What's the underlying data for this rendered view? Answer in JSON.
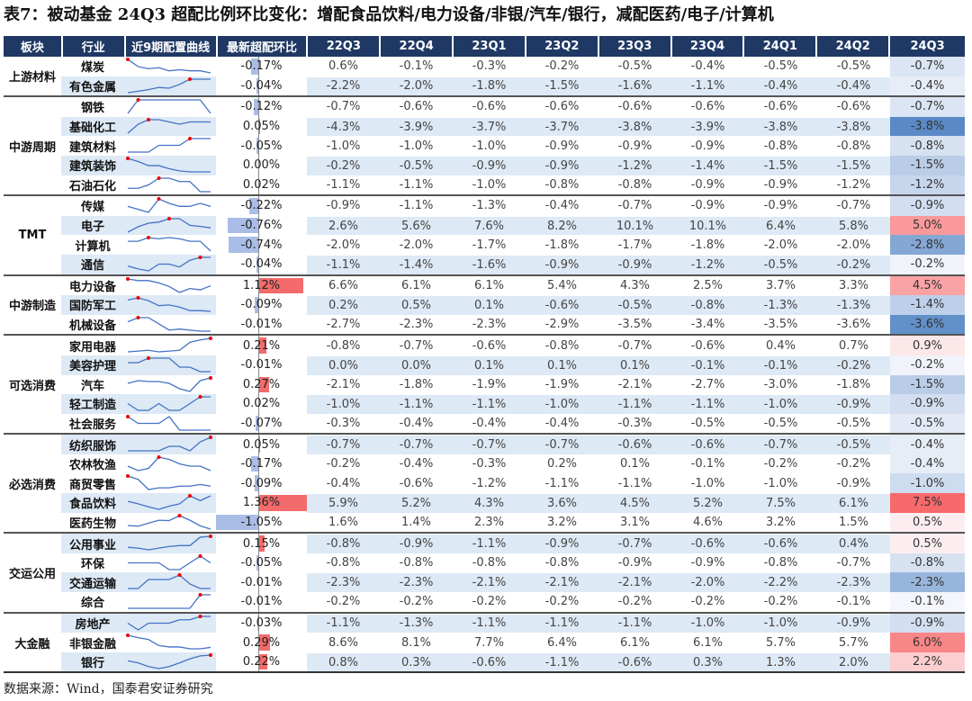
{
  "title": "表7：被动基金 24Q3 超配比例环比变化：增配食品饮料/电力设备/非银/汽车/银行，减配医药/电子/计算机",
  "source": "数据来源：Wind，国泰君安证券研究",
  "headers": [
    "板块",
    "行业",
    "近9期配置曲线",
    "最新超配环比",
    "22Q3",
    "22Q4",
    "23Q1",
    "23Q2",
    "23Q3",
    "23Q4",
    "24Q1",
    "24Q2",
    "24Q3"
  ],
  "colors": {
    "header": "#1f3864",
    "positive": "#f8696b",
    "negative": "#5a8ac6",
    "shade": "#dde9f5"
  },
  "groups": [
    {
      "name": "上游材料",
      "rows": [
        {
          "industry": "煤炭",
          "latest": "-0.17%",
          "latest_value": -0.17,
          "values": [
            "0.6%",
            "-0.1%",
            "-0.3%",
            "-0.2%",
            "-0.5%",
            "-0.4%",
            "-0.5%",
            "-0.5%",
            "-0.7%"
          ]
        },
        {
          "industry": "有色金属",
          "latest": "-0.04%",
          "latest_value": -0.04,
          "values": [
            "-2.2%",
            "-2.0%",
            "-1.8%",
            "-1.5%",
            "-1.6%",
            "-1.1%",
            "-0.4%",
            "-0.4%",
            "-0.4%"
          ]
        }
      ]
    },
    {
      "name": "中游周期",
      "rows": [
        {
          "industry": "钢铁",
          "latest": "-0.12%",
          "latest_value": -0.12,
          "values": [
            "-0.7%",
            "-0.6%",
            "-0.6%",
            "-0.6%",
            "-0.6%",
            "-0.6%",
            "-0.6%",
            "-0.6%",
            "-0.7%"
          ]
        },
        {
          "industry": "基础化工",
          "latest": "0.05%",
          "latest_value": 0.05,
          "values": [
            "-4.3%",
            "-3.9%",
            "-3.7%",
            "-3.7%",
            "-3.8%",
            "-3.9%",
            "-3.8%",
            "-3.8%",
            "-3.8%"
          ]
        },
        {
          "industry": "建筑材料",
          "latest": "-0.05%",
          "latest_value": -0.05,
          "values": [
            "-1.0%",
            "-1.0%",
            "-1.0%",
            "-0.9%",
            "-0.9%",
            "-0.9%",
            "-0.8%",
            "-0.8%",
            "-0.8%"
          ]
        },
        {
          "industry": "建筑装饰",
          "latest": "0.00%",
          "latest_value": 0,
          "values": [
            "-0.2%",
            "-0.5%",
            "-0.9%",
            "-0.9%",
            "-1.2%",
            "-1.4%",
            "-1.5%",
            "-1.5%",
            "-1.5%"
          ]
        },
        {
          "industry": "石油石化",
          "latest": "0.02%",
          "latest_value": 0.02,
          "values": [
            "-1.1%",
            "-1.1%",
            "-1.0%",
            "-0.8%",
            "-0.8%",
            "-0.9%",
            "-0.9%",
            "-1.2%",
            "-1.2%"
          ]
        }
      ]
    },
    {
      "name": "TMT",
      "rows": [
        {
          "industry": "传媒",
          "latest": "-0.22%",
          "latest_value": -0.22,
          "values": [
            "-0.9%",
            "-1.1%",
            "-1.3%",
            "-0.4%",
            "-0.7%",
            "-0.9%",
            "-0.9%",
            "-0.7%",
            "-0.9%"
          ]
        },
        {
          "industry": "电子",
          "latest": "-0.76%",
          "latest_value": -0.76,
          "values": [
            "2.6%",
            "5.6%",
            "7.6%",
            "8.2%",
            "10.1%",
            "10.1%",
            "6.4%",
            "5.8%",
            "5.0%"
          ]
        },
        {
          "industry": "计算机",
          "latest": "-0.74%",
          "latest_value": -0.74,
          "values": [
            "-2.0%",
            "-2.0%",
            "-1.7%",
            "-1.8%",
            "-1.7%",
            "-1.8%",
            "-2.0%",
            "-2.0%",
            "-2.8%"
          ]
        },
        {
          "industry": "通信",
          "latest": "-0.04%",
          "latest_value": -0.04,
          "values": [
            "-1.1%",
            "-1.4%",
            "-1.6%",
            "-0.9%",
            "-0.9%",
            "-1.2%",
            "-0.5%",
            "-0.2%",
            "-0.2%"
          ]
        }
      ]
    },
    {
      "name": "中游制造",
      "rows": [
        {
          "industry": "电力设备",
          "latest": "1.12%",
          "latest_value": 1.12,
          "values": [
            "6.6%",
            "6.1%",
            "6.1%",
            "5.4%",
            "4.3%",
            "2.5%",
            "3.7%",
            "3.3%",
            "4.5%"
          ]
        },
        {
          "industry": "国防军工",
          "latest": "-0.09%",
          "latest_value": -0.09,
          "values": [
            "0.2%",
            "0.5%",
            "0.1%",
            "-0.6%",
            "-0.5%",
            "-0.8%",
            "-1.3%",
            "-1.3%",
            "-1.4%"
          ]
        },
        {
          "industry": "机械设备",
          "latest": "-0.01%",
          "latest_value": -0.01,
          "values": [
            "-2.7%",
            "-2.3%",
            "-2.3%",
            "-2.9%",
            "-3.5%",
            "-3.4%",
            "-3.5%",
            "-3.6%",
            "-3.6%"
          ]
        }
      ]
    },
    {
      "name": "可选消费",
      "rows": [
        {
          "industry": "家用电器",
          "latest": "0.21%",
          "latest_value": 0.21,
          "values": [
            "-0.8%",
            "-0.7%",
            "-0.6%",
            "-0.8%",
            "-0.7%",
            "-0.6%",
            "0.4%",
            "0.7%",
            "0.9%"
          ]
        },
        {
          "industry": "美容护理",
          "latest": "-0.01%",
          "latest_value": -0.01,
          "values": [
            "0.0%",
            "0.0%",
            "0.1%",
            "0.1%",
            "0.1%",
            "-0.1%",
            "-0.1%",
            "-0.2%",
            "-0.2%"
          ]
        },
        {
          "industry": "汽车",
          "latest": "0.27%",
          "latest_value": 0.27,
          "values": [
            "-2.1%",
            "-1.8%",
            "-1.9%",
            "-1.9%",
            "-2.1%",
            "-2.7%",
            "-3.0%",
            "-1.8%",
            "-1.5%"
          ]
        },
        {
          "industry": "轻工制造",
          "latest": "0.02%",
          "latest_value": 0.02,
          "values": [
            "-1.0%",
            "-1.1%",
            "-1.1%",
            "-1.0%",
            "-1.1%",
            "-1.1%",
            "-1.0%",
            "-0.9%",
            "-0.9%"
          ]
        },
        {
          "industry": "社会服务",
          "latest": "-0.07%",
          "latest_value": -0.07,
          "values": [
            "-0.3%",
            "-0.4%",
            "-0.4%",
            "-0.4%",
            "-0.3%",
            "-0.5%",
            "-0.5%",
            "-0.5%",
            "-0.5%"
          ]
        }
      ]
    },
    {
      "name": "必选消费",
      "rows": [
        {
          "industry": "纺织服饰",
          "latest": "0.05%",
          "latest_value": 0.05,
          "values": [
            "-0.7%",
            "-0.7%",
            "-0.7%",
            "-0.7%",
            "-0.6%",
            "-0.6%",
            "-0.7%",
            "-0.5%",
            "-0.4%"
          ]
        },
        {
          "industry": "农林牧渔",
          "latest": "-0.17%",
          "latest_value": -0.17,
          "values": [
            "-0.2%",
            "-0.4%",
            "-0.3%",
            "0.2%",
            "0.1%",
            "-0.1%",
            "-0.2%",
            "-0.2%",
            "-0.4%"
          ]
        },
        {
          "industry": "商贸零售",
          "latest": "-0.09%",
          "latest_value": -0.09,
          "values": [
            "-0.4%",
            "-0.6%",
            "-1.2%",
            "-1.1%",
            "-1.1%",
            "-1.0%",
            "-1.0%",
            "-0.9%",
            "-1.0%"
          ]
        },
        {
          "industry": "食品饮料",
          "latest": "1.36%",
          "latest_value": 1.36,
          "values": [
            "5.9%",
            "5.2%",
            "4.3%",
            "3.6%",
            "4.5%",
            "5.2%",
            "7.5%",
            "6.1%",
            "7.5%"
          ]
        },
        {
          "industry": "医药生物",
          "latest": "-1.05%",
          "latest_value": -1.05,
          "values": [
            "1.6%",
            "1.4%",
            "2.3%",
            "3.2%",
            "3.1%",
            "4.6%",
            "3.2%",
            "1.5%",
            "0.5%"
          ]
        }
      ]
    },
    {
      "name": "交运公用",
      "rows": [
        {
          "industry": "公用事业",
          "latest": "0.15%",
          "latest_value": 0.15,
          "values": [
            "-0.8%",
            "-0.9%",
            "-1.1%",
            "-0.9%",
            "-0.7%",
            "-0.6%",
            "-0.6%",
            "0.4%",
            "0.5%"
          ]
        },
        {
          "industry": "环保",
          "latest": "-0.05%",
          "latest_value": -0.05,
          "values": [
            "-0.8%",
            "-0.8%",
            "-0.8%",
            "-0.8%",
            "-0.9%",
            "-0.9%",
            "-0.8%",
            "-0.7%",
            "-0.8%"
          ]
        },
        {
          "industry": "交通运输",
          "latest": "-0.01%",
          "latest_value": -0.01,
          "values": [
            "-2.3%",
            "-2.3%",
            "-2.1%",
            "-2.1%",
            "-2.1%",
            "-2.0%",
            "-2.2%",
            "-2.3%",
            "-2.3%"
          ]
        },
        {
          "industry": "综合",
          "latest": "-0.01%",
          "latest_value": -0.01,
          "values": [
            "-0.2%",
            "-0.2%",
            "-0.2%",
            "-0.2%",
            "-0.2%",
            "-0.2%",
            "-0.2%",
            "-0.1%",
            "-0.1%"
          ]
        }
      ]
    },
    {
      "name": "大金融",
      "rows": [
        {
          "industry": "房地产",
          "latest": "-0.03%",
          "latest_value": -0.03,
          "values": [
            "-1.1%",
            "-1.3%",
            "-1.1%",
            "-1.1%",
            "-1.1%",
            "-1.0%",
            "-1.0%",
            "-0.9%",
            "-0.9%"
          ]
        },
        {
          "industry": "非银金融",
          "latest": "0.29%",
          "latest_value": 0.29,
          "values": [
            "8.6%",
            "8.1%",
            "7.7%",
            "6.4%",
            "6.1%",
            "6.1%",
            "5.7%",
            "5.7%",
            "6.0%"
          ]
        },
        {
          "industry": "银行",
          "latest": "0.22%",
          "latest_value": 0.22,
          "values": [
            "0.8%",
            "0.3%",
            "-0.6%",
            "-1.1%",
            "-0.6%",
            "0.3%",
            "1.3%",
            "2.0%",
            "2.2%"
          ]
        }
      ]
    }
  ]
}
